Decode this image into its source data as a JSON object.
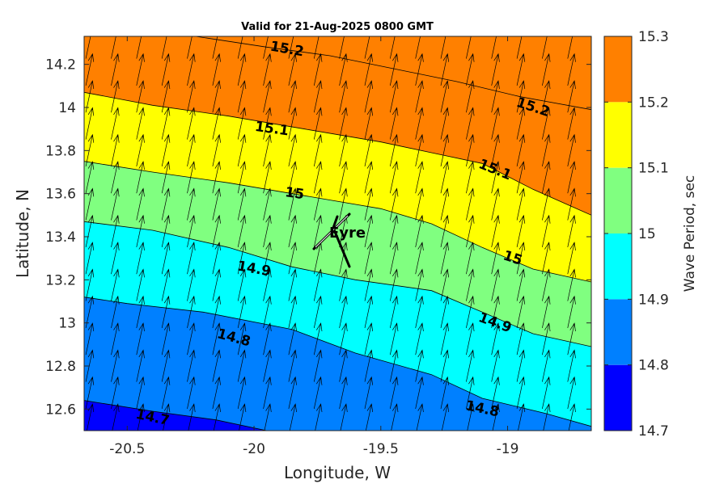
{
  "chart_data": {
    "type": "contour",
    "title": "Valid for 21-Aug-2025 0800 GMT",
    "xlabel": "Longitude, W",
    "ylabel": "Latitude, N",
    "xlim": [
      -20.67,
      -18.67
    ],
    "ylim": [
      12.5,
      14.33
    ],
    "x_ticks": [
      -20.5,
      -20,
      -19.5,
      -19
    ],
    "x_tick_labels": [
      "-20.5",
      "-20",
      "-19.5",
      "-19"
    ],
    "y_ticks": [
      12.6,
      12.8,
      13,
      13.2,
      13.4,
      13.6,
      13.8,
      14,
      14.2
    ],
    "y_tick_labels": [
      "12.6",
      "12.8",
      "13",
      "13.2",
      "13.4",
      "13.6",
      "13.8",
      "14",
      "14.2"
    ],
    "colorbar": {
      "label": "Wave Period, sec",
      "levels": [
        14.7,
        14.8,
        14.9,
        15,
        15.1,
        15.2,
        15.3
      ],
      "tick_labels": [
        "14.7",
        "14.8",
        "14.9",
        "15",
        "15.1",
        "15.2",
        "15.3"
      ],
      "colors": [
        "#0000ff",
        "#0080ff",
        "#00ffff",
        "#80ff80",
        "#ffff00",
        "#ff8000"
      ]
    },
    "contour_lines": [
      {
        "level": 14.7,
        "points": [
          [
            -20.67,
            12.64
          ],
          [
            -20.4,
            12.59
          ],
          [
            -20.15,
            12.55
          ],
          [
            -19.95,
            12.5
          ]
        ]
      },
      {
        "level": 14.8,
        "points": [
          [
            -20.67,
            13.12
          ],
          [
            -20.5,
            13.09
          ],
          [
            -20.2,
            13.05
          ],
          [
            -19.85,
            12.97
          ],
          [
            -19.6,
            12.86
          ],
          [
            -19.3,
            12.76
          ],
          [
            -19.1,
            12.65
          ],
          [
            -18.85,
            12.58
          ],
          [
            -18.67,
            12.52
          ]
        ]
      },
      {
        "level": 14.9,
        "points": [
          [
            -20.67,
            13.47
          ],
          [
            -20.4,
            13.43
          ],
          [
            -20.1,
            13.35
          ],
          [
            -19.85,
            13.26
          ],
          [
            -19.6,
            13.2
          ],
          [
            -19.3,
            13.15
          ],
          [
            -19.1,
            13.05
          ],
          [
            -18.9,
            12.95
          ],
          [
            -18.67,
            12.89
          ]
        ]
      },
      {
        "level": 15.0,
        "points": [
          [
            -20.67,
            13.75
          ],
          [
            -20.4,
            13.7
          ],
          [
            -20.1,
            13.65
          ],
          [
            -19.8,
            13.59
          ],
          [
            -19.5,
            13.53
          ],
          [
            -19.3,
            13.46
          ],
          [
            -19.1,
            13.35
          ],
          [
            -18.9,
            13.25
          ],
          [
            -18.67,
            13.19
          ]
        ]
      },
      {
        "level": 15.1,
        "points": [
          [
            -20.67,
            14.07
          ],
          [
            -20.4,
            14.01
          ],
          [
            -20.1,
            13.96
          ],
          [
            -19.8,
            13.9
          ],
          [
            -19.5,
            13.84
          ],
          [
            -19.3,
            13.79
          ],
          [
            -19.1,
            13.74
          ],
          [
            -18.9,
            13.62
          ],
          [
            -18.67,
            13.5
          ]
        ]
      },
      {
        "level": 15.2,
        "points": [
          [
            -20.23,
            14.33
          ],
          [
            -19.95,
            14.28
          ],
          [
            -19.7,
            14.24
          ],
          [
            -19.45,
            14.18
          ],
          [
            -19.2,
            14.12
          ],
          [
            -18.95,
            14.05
          ],
          [
            -18.67,
            13.99
          ]
        ]
      }
    ],
    "contour_labels": [
      {
        "text": "15.2",
        "lon": -19.87,
        "lat": 14.27,
        "angle": 10
      },
      {
        "text": "15.2",
        "lon": -18.9,
        "lat": 14.0,
        "angle": 18
      },
      {
        "text": "15.1",
        "lon": -19.93,
        "lat": 13.9,
        "angle": 8
      },
      {
        "text": "15.1",
        "lon": -19.05,
        "lat": 13.71,
        "angle": 22
      },
      {
        "text": "15",
        "lon": -19.84,
        "lat": 13.6,
        "angle": 8
      },
      {
        "text": "15",
        "lon": -18.98,
        "lat": 13.3,
        "angle": 18
      },
      {
        "text": "14.9",
        "lon": -20.0,
        "lat": 13.25,
        "angle": 10
      },
      {
        "text": "14.9",
        "lon": -19.05,
        "lat": 13.0,
        "angle": 20
      },
      {
        "text": "14.8",
        "lon": -20.08,
        "lat": 12.93,
        "angle": 15
      },
      {
        "text": "14.8",
        "lon": -19.1,
        "lat": 12.6,
        "angle": 12
      },
      {
        "text": "14.7",
        "lon": -20.4,
        "lat": 12.56,
        "angle": 12
      }
    ],
    "vector_field": {
      "lon_start": -20.65,
      "lon_step": 0.1,
      "lon_count": 20,
      "lat_start": 12.55,
      "lat_step": 0.125,
      "lat_count": 15,
      "direction_deg": 12
    },
    "station": {
      "label": "Eyre",
      "lon": -19.7,
      "lat": 13.42
    }
  }
}
